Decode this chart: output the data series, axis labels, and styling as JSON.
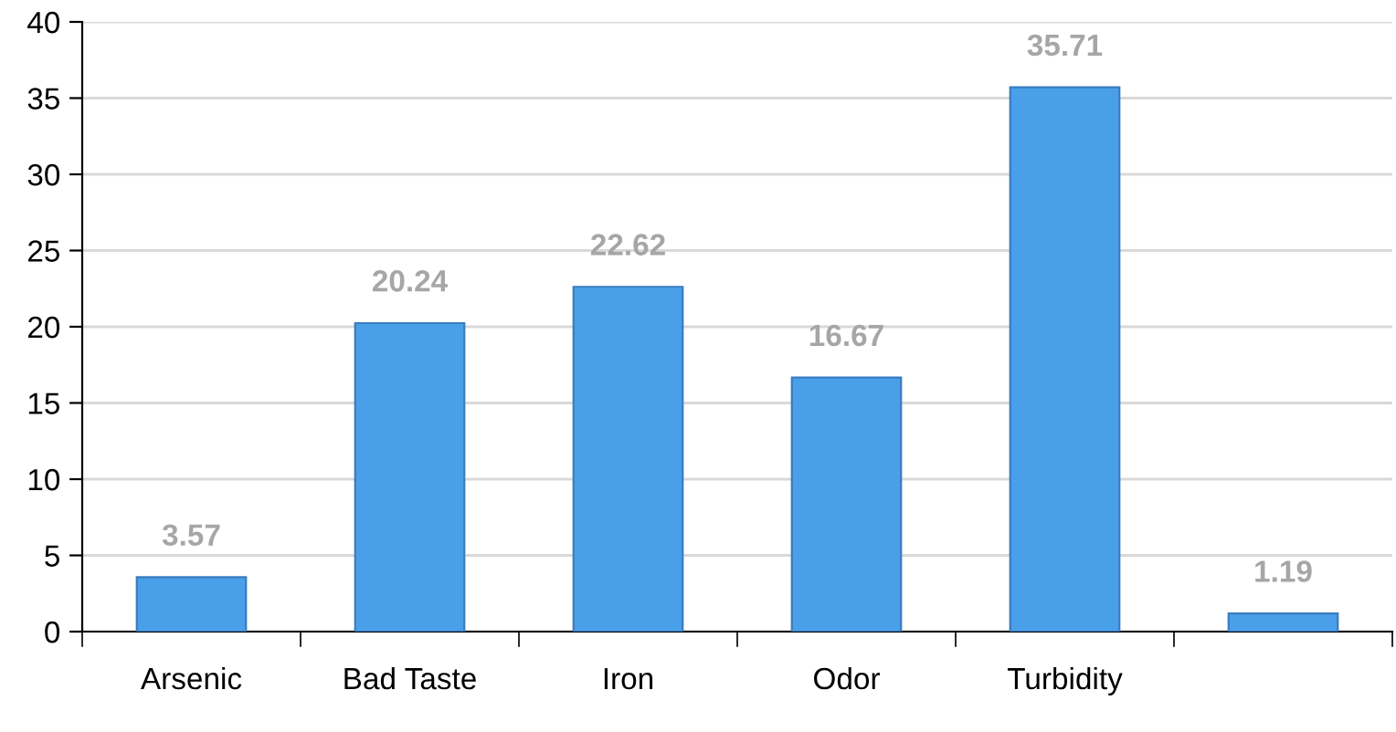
{
  "chart_data": {
    "type": "bar",
    "categories": [
      "Arsenic",
      "Bad Taste",
      "Iron",
      "Odor",
      "Turbidity",
      null
    ],
    "values": [
      3.57,
      20.24,
      22.62,
      16.67,
      35.71,
      1.19
    ],
    "color": "#4a9fe9",
    "ylim": [
      0,
      40
    ],
    "yticks": [
      0,
      5,
      10,
      15,
      20,
      25,
      30,
      35,
      40
    ],
    "grid": "y",
    "data_labels": true
  }
}
